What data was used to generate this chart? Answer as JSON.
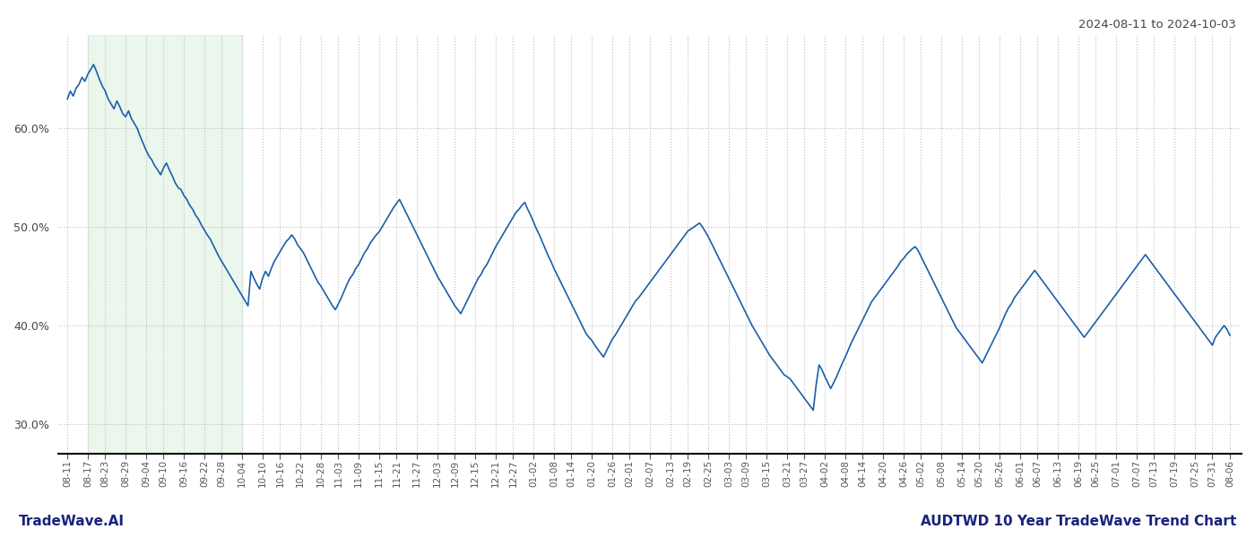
{
  "title_top_right": "2024-08-11 to 2024-10-03",
  "title_bottom_right": "AUDTWD 10 Year TradeWave Trend Chart",
  "title_bottom_left": "TradeWave.AI",
  "line_color": "#1a5fa8",
  "line_width": 1.2,
  "shaded_color": "#c8e6c9",
  "shaded_alpha": 0.35,
  "background_color": "#ffffff",
  "grid_color": "#bbbbbb",
  "ylim": [
    0.27,
    0.695
  ],
  "yticks": [
    0.3,
    0.4,
    0.5,
    0.6
  ],
  "ytick_labels": [
    "30.0%",
    "40.0%",
    "50.0%",
    "60.0%"
  ],
  "shade_label_start": "08-17",
  "shade_label_end": "09-28",
  "x_labels": [
    "08-11",
    "08-17",
    "08-23",
    "08-29",
    "09-04",
    "09-10",
    "09-16",
    "09-22",
    "09-28",
    "10-04",
    "10-10",
    "10-16",
    "10-22",
    "10-28",
    "11-03",
    "11-09",
    "11-15",
    "11-21",
    "11-27",
    "12-03",
    "12-09",
    "12-15",
    "12-21",
    "12-27",
    "01-02",
    "01-08",
    "01-14",
    "01-20",
    "01-26",
    "02-01",
    "02-07",
    "02-13",
    "02-19",
    "02-25",
    "03-03",
    "03-09",
    "03-15",
    "03-21",
    "03-27",
    "04-02",
    "04-08",
    "04-14",
    "04-20",
    "04-26",
    "05-02",
    "05-08",
    "05-14",
    "05-20",
    "05-26",
    "06-01",
    "06-07",
    "06-13",
    "06-19",
    "06-25",
    "07-01",
    "07-07",
    "07-13",
    "07-19",
    "07-25",
    "07-31",
    "08-06"
  ],
  "values": [
    0.63,
    0.638,
    0.633,
    0.641,
    0.645,
    0.652,
    0.648,
    0.655,
    0.66,
    0.665,
    0.658,
    0.65,
    0.643,
    0.638,
    0.63,
    0.625,
    0.62,
    0.628,
    0.622,
    0.615,
    0.612,
    0.618,
    0.61,
    0.605,
    0.6,
    0.592,
    0.585,
    0.578,
    0.572,
    0.568,
    0.562,
    0.558,
    0.553,
    0.56,
    0.565,
    0.558,
    0.552,
    0.545,
    0.54,
    0.538,
    0.532,
    0.528,
    0.522,
    0.518,
    0.512,
    0.508,
    0.502,
    0.497,
    0.492,
    0.488,
    0.482,
    0.476,
    0.47,
    0.465,
    0.46,
    0.455,
    0.45,
    0.445,
    0.44,
    0.435,
    0.43,
    0.425,
    0.42,
    0.455,
    0.448,
    0.442,
    0.437,
    0.448,
    0.455,
    0.45,
    0.458,
    0.465,
    0.47,
    0.475,
    0.48,
    0.485,
    0.488,
    0.492,
    0.488,
    0.482,
    0.478,
    0.474,
    0.468,
    0.462,
    0.456,
    0.45,
    0.444,
    0.44,
    0.435,
    0.43,
    0.425,
    0.42,
    0.416,
    0.422,
    0.428,
    0.435,
    0.442,
    0.448,
    0.452,
    0.458,
    0.462,
    0.468,
    0.474,
    0.478,
    0.484,
    0.488,
    0.492,
    0.495,
    0.5,
    0.505,
    0.51,
    0.515,
    0.52,
    0.524,
    0.528,
    0.522,
    0.516,
    0.51,
    0.504,
    0.498,
    0.492,
    0.486,
    0.48,
    0.474,
    0.468,
    0.462,
    0.456,
    0.45,
    0.445,
    0.44,
    0.435,
    0.43,
    0.425,
    0.42,
    0.416,
    0.412,
    0.418,
    0.424,
    0.43,
    0.436,
    0.442,
    0.448,
    0.452,
    0.458,
    0.462,
    0.468,
    0.474,
    0.48,
    0.485,
    0.49,
    0.495,
    0.5,
    0.505,
    0.51,
    0.515,
    0.518,
    0.522,
    0.525,
    0.518,
    0.512,
    0.505,
    0.498,
    0.492,
    0.485,
    0.478,
    0.471,
    0.465,
    0.458,
    0.452,
    0.446,
    0.44,
    0.434,
    0.428,
    0.422,
    0.416,
    0.41,
    0.404,
    0.398,
    0.392,
    0.388,
    0.385,
    0.38,
    0.376,
    0.372,
    0.368,
    0.374,
    0.38,
    0.386,
    0.39,
    0.395,
    0.4,
    0.405,
    0.41,
    0.415,
    0.42,
    0.425,
    0.428,
    0.432,
    0.436,
    0.44,
    0.444,
    0.448,
    0.452,
    0.456,
    0.46,
    0.464,
    0.468,
    0.472,
    0.476,
    0.48,
    0.484,
    0.488,
    0.492,
    0.496,
    0.498,
    0.5,
    0.502,
    0.504,
    0.5,
    0.495,
    0.49,
    0.484,
    0.478,
    0.472,
    0.466,
    0.46,
    0.454,
    0.448,
    0.442,
    0.436,
    0.43,
    0.424,
    0.418,
    0.412,
    0.406,
    0.4,
    0.395,
    0.39,
    0.385,
    0.38,
    0.375,
    0.37,
    0.366,
    0.362,
    0.358,
    0.354,
    0.35,
    0.348,
    0.346,
    0.342,
    0.338,
    0.334,
    0.33,
    0.326,
    0.322,
    0.318,
    0.314,
    0.34,
    0.36,
    0.355,
    0.348,
    0.342,
    0.336,
    0.342,
    0.348,
    0.355,
    0.362,
    0.368,
    0.375,
    0.382,
    0.388,
    0.394,
    0.4,
    0.406,
    0.412,
    0.418,
    0.424,
    0.428,
    0.432,
    0.436,
    0.44,
    0.444,
    0.448,
    0.452,
    0.456,
    0.46,
    0.465,
    0.468,
    0.472,
    0.475,
    0.478,
    0.48,
    0.476,
    0.47,
    0.464,
    0.458,
    0.452,
    0.446,
    0.44,
    0.434,
    0.428,
    0.422,
    0.416,
    0.41,
    0.404,
    0.398,
    0.394,
    0.39,
    0.386,
    0.382,
    0.378,
    0.374,
    0.37,
    0.366,
    0.362,
    0.368,
    0.374,
    0.38,
    0.386,
    0.392,
    0.398,
    0.405,
    0.412,
    0.418,
    0.422,
    0.428,
    0.432,
    0.436,
    0.44,
    0.444,
    0.448,
    0.452,
    0.456,
    0.452,
    0.448,
    0.444,
    0.44,
    0.436,
    0.432,
    0.428,
    0.424,
    0.42,
    0.416,
    0.412,
    0.408,
    0.404,
    0.4,
    0.396,
    0.392,
    0.388,
    0.392,
    0.396,
    0.4,
    0.404,
    0.408,
    0.412,
    0.416,
    0.42,
    0.424,
    0.428,
    0.432,
    0.436,
    0.44,
    0.444,
    0.448,
    0.452,
    0.456,
    0.46,
    0.464,
    0.468,
    0.472,
    0.468,
    0.464,
    0.46,
    0.456,
    0.452,
    0.448,
    0.444,
    0.44,
    0.436,
    0.432,
    0.428,
    0.424,
    0.42,
    0.416,
    0.412,
    0.408,
    0.404,
    0.4,
    0.396,
    0.392,
    0.388,
    0.384,
    0.38,
    0.388,
    0.392,
    0.396,
    0.4,
    0.396,
    0.39
  ]
}
